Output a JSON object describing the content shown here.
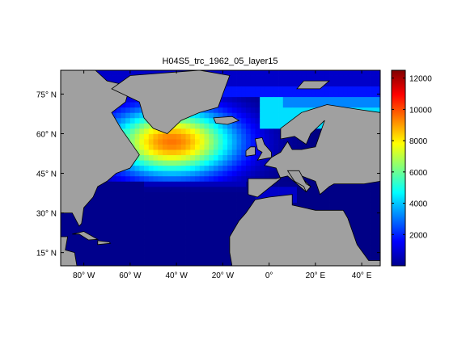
{
  "chart_data": {
    "type": "heatmap",
    "title": "H04S5_trc_1962_05_layer15",
    "xlabel": "",
    "ylabel": "",
    "xlim": [
      -90,
      48
    ],
    "ylim": [
      10,
      84
    ],
    "x_ticks": [
      {
        "value": -80,
        "label": "80° W"
      },
      {
        "value": -60,
        "label": "60° W"
      },
      {
        "value": -40,
        "label": "40° W"
      },
      {
        "value": -20,
        "label": "20° W"
      },
      {
        "value": 0,
        "label": "0°"
      },
      {
        "value": 20,
        "label": "20° E"
      },
      {
        "value": 40,
        "label": "40° E"
      }
    ],
    "y_ticks": [
      {
        "value": 15,
        "label": "15° N"
      },
      {
        "value": 30,
        "label": "30° N"
      },
      {
        "value": 45,
        "label": "45° N"
      },
      {
        "value": 60,
        "label": "60° N"
      },
      {
        "value": 75,
        "label": "75° N"
      }
    ],
    "colorbar": {
      "min": 0,
      "max": 12500,
      "ticks": [
        2000,
        4000,
        6000,
        8000,
        10000,
        12000
      ],
      "colormap": "jet"
    },
    "land_color": "#a0a0a0",
    "nodata_color": "#ffffff",
    "field_peak": {
      "lon": -42,
      "lat": 57,
      "value": 9500
    }
  }
}
